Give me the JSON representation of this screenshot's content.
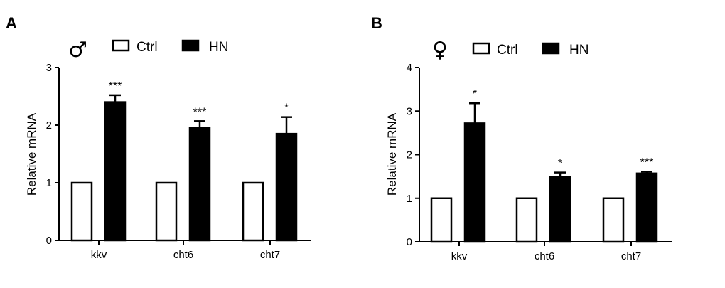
{
  "chart_data": [
    {
      "type": "bar",
      "panel_label": "A",
      "sex_symbol": "♂",
      "ylabel": "Relative mRNA",
      "xlabel": "",
      "ylim": [
        0,
        3
      ],
      "yticks": [
        "0",
        "1",
        "2",
        "3"
      ],
      "categories": [
        "kkv",
        "cht6",
        "cht7"
      ],
      "legend": {
        "placement": "top",
        "entries": [
          "Ctrl",
          "HN"
        ]
      },
      "series": [
        {
          "name": "Ctrl",
          "values": [
            1,
            1,
            1
          ],
          "errors": [
            0,
            0,
            0
          ],
          "fill": "#ffffff"
        },
        {
          "name": "HN",
          "values": [
            2.4,
            1.95,
            1.85
          ],
          "errors": [
            0.12,
            0.12,
            0.29
          ],
          "fill": "#000000"
        }
      ],
      "significance": [
        "***",
        "***",
        "*"
      ]
    },
    {
      "type": "bar",
      "panel_label": "B",
      "sex_symbol": "♀",
      "ylabel": "Relative mRNA",
      "xlabel": "",
      "ylim": [
        0,
        4
      ],
      "yticks": [
        "0",
        "1",
        "2",
        "3",
        "4"
      ],
      "categories": [
        "kkv",
        "cht6",
        "cht7"
      ],
      "legend": {
        "placement": "top",
        "entries": [
          "Ctrl",
          "HN"
        ]
      },
      "series": [
        {
          "name": "Ctrl",
          "values": [
            1,
            1,
            1
          ],
          "errors": [
            0,
            0,
            0
          ],
          "fill": "#ffffff"
        },
        {
          "name": "HN",
          "values": [
            2.72,
            1.49,
            1.57
          ],
          "errors": [
            0.46,
            0.1,
            0.04
          ],
          "fill": "#000000"
        }
      ],
      "significance": [
        "*",
        "*",
        "***"
      ]
    }
  ]
}
